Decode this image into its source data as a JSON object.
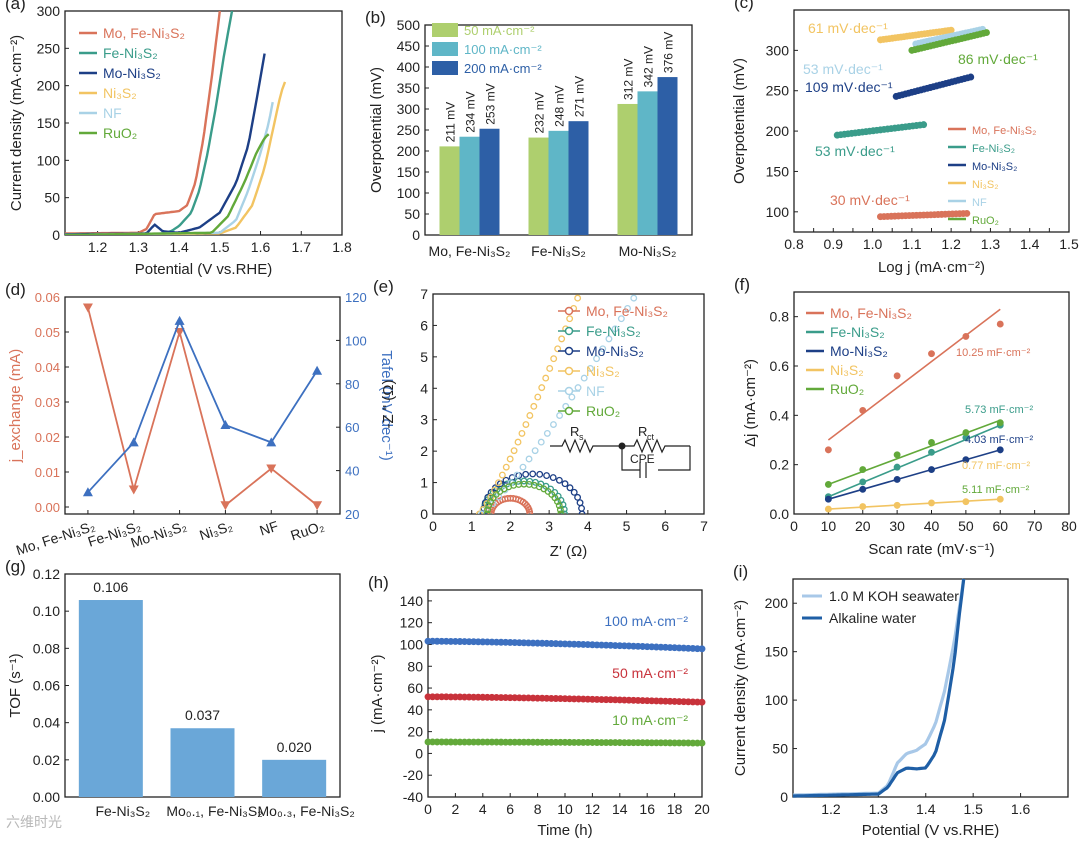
{
  "watermark": "六维时光",
  "chart_data": [
    {
      "panel": "(a)",
      "type": "line",
      "xlabel": "Potential (V vs.RHE)",
      "ylabel": "Current density (mA·cm⁻²)",
      "xlim": [
        1.12,
        1.8
      ],
      "ylim": [
        0,
        300
      ],
      "xticks": [
        1.2,
        1.3,
        1.4,
        1.5,
        1.6,
        1.7,
        1.8
      ],
      "yticks": [
        0,
        50,
        100,
        150,
        200,
        250,
        300
      ],
      "series": [
        {
          "name": "Mo, Fe-Ni₃S₂",
          "color": "#d9735a",
          "x": [
            1.12,
            1.3,
            1.32,
            1.34,
            1.37,
            1.4,
            1.42,
            1.44,
            1.46,
            1.48,
            1.5
          ],
          "y": [
            2,
            3,
            8,
            28,
            30,
            32,
            40,
            70,
            130,
            210,
            300
          ]
        },
        {
          "name": "Fe-Ni₃S₂",
          "color": "#3a9c8a",
          "x": [
            1.12,
            1.35,
            1.38,
            1.4,
            1.43,
            1.45,
            1.47,
            1.49,
            1.51,
            1.53
          ],
          "y": [
            1,
            1,
            5,
            12,
            30,
            60,
            110,
            170,
            240,
            300
          ]
        },
        {
          "name": "Mo-Ni₃S₂",
          "color": "#1d3f86",
          "x": [
            1.12,
            1.32,
            1.34,
            1.36,
            1.4,
            1.45,
            1.5,
            1.54,
            1.57,
            1.59,
            1.61
          ],
          "y": [
            1,
            2,
            14,
            5,
            3,
            10,
            30,
            70,
            120,
            180,
            243
          ]
        },
        {
          "name": "Ni₃S₂",
          "color": "#f2c462",
          "x": [
            1.12,
            1.5,
            1.54,
            1.58,
            1.61,
            1.63,
            1.65,
            1.66
          ],
          "y": [
            0,
            2,
            10,
            40,
            90,
            140,
            190,
            205
          ]
        },
        {
          "name": "NF",
          "color": "#a9d2e6",
          "x": [
            1.12,
            1.5,
            1.54,
            1.57,
            1.6,
            1.62,
            1.63
          ],
          "y": [
            0,
            3,
            20,
            60,
            110,
            150,
            178
          ]
        },
        {
          "name": "RuO₂",
          "color": "#62a93a",
          "x": [
            1.12,
            1.48,
            1.52,
            1.56,
            1.59,
            1.61,
            1.62
          ],
          "y": [
            0,
            3,
            25,
            70,
            110,
            130,
            135
          ]
        }
      ]
    },
    {
      "panel": "(b)",
      "type": "bar",
      "xlabel": "",
      "ylabel": "Overpotential (mV)",
      "ylim": [
        0,
        500
      ],
      "yticks": [
        0,
        50,
        100,
        150,
        200,
        250,
        300,
        350,
        400,
        450,
        500
      ],
      "categories": [
        "Mo, Fe-Ni₃S₂",
        "Fe-Ni₃S₂",
        "Mo-Ni₃S₂"
      ],
      "series": [
        {
          "name": "50 mA·cm⁻²",
          "color": "#aecf6e",
          "values": [
            211,
            232,
            312
          ],
          "labels": [
            "211 mV",
            "232 mV",
            "312 mV"
          ]
        },
        {
          "name": "100 mA·cm⁻²",
          "color": "#5fb6c7",
          "values": [
            234,
            248,
            342
          ],
          "labels": [
            "234 mV",
            "248 mV",
            "342 mV"
          ]
        },
        {
          "name": "200 mA·cm⁻²",
          "color": "#2d5fa6",
          "values": [
            253,
            271,
            376
          ],
          "labels": [
            "253 mV",
            "271 mV",
            "376 mV"
          ]
        }
      ]
    },
    {
      "panel": "(c)",
      "type": "scatter",
      "xlabel": "Log j (mA·cm⁻²)",
      "ylabel": "Overpotential (mV)",
      "xlim": [
        0.8,
        1.5
      ],
      "ylim": [
        75,
        350
      ],
      "xticks": [
        0.8,
        0.85,
        0.9,
        0.95,
        1.0,
        1.05,
        1.1,
        1.15,
        1.2,
        1.25,
        1.3,
        1.35,
        1.4,
        1.45,
        1.5
      ],
      "xticklabels": [
        "0.8",
        "",
        "0.9",
        "",
        "1.0",
        "",
        "1.1",
        "",
        "1.2",
        "",
        "1.3",
        "",
        "1.4",
        "",
        "1.5"
      ],
      "yticks": [
        100,
        150,
        200,
        250,
        300
      ],
      "series": [
        {
          "name": "Mo, Fe-Ni₃S₂",
          "color": "#d9735a",
          "x0": 1.02,
          "x1": 1.24,
          "y0": 94,
          "y1": 98,
          "tafel": "30 mV·dec⁻¹"
        },
        {
          "name": "Fe-Ni₃S₂",
          "color": "#3a9c8a",
          "x0": 0.91,
          "x1": 1.13,
          "y0": 195,
          "y1": 208,
          "tafel": "53 mV·dec⁻¹"
        },
        {
          "name": "Mo-Ni₃S₂",
          "color": "#1d3f86",
          "x0": 1.06,
          "x1": 1.25,
          "y0": 243,
          "y1": 267,
          "tafel": "109 mV·dec⁻¹"
        },
        {
          "name": "Ni₃S₂",
          "color": "#f2c462",
          "x0": 1.02,
          "x1": 1.2,
          "y0": 313,
          "y1": 325,
          "tafel": "61 mV·dec⁻¹"
        },
        {
          "name": "NF",
          "color": "#a9d2e6",
          "x0": 1.11,
          "x1": 1.28,
          "y0": 308,
          "y1": 326,
          "tafel": "53 mV·dec⁻¹"
        },
        {
          "name": "RuO₂",
          "color": "#62a93a",
          "x0": 1.1,
          "x1": 1.29,
          "y0": 300,
          "y1": 322,
          "tafel": "86 mV·dec⁻¹"
        }
      ]
    },
    {
      "panel": "(d)",
      "type": "line",
      "xlabel": "",
      "ylabel_left": "j_exchange (mA)",
      "ylabel_right": "Tafel (mV·dec⁻¹)",
      "categories": [
        "Mo, Fe-Ni₃S₂",
        "Fe-Ni₃S₂",
        "Mo-Ni₃S₂",
        "Ni₃S₂",
        "NF",
        "RuO₂"
      ],
      "ylim_left": [
        -0.002,
        0.06
      ],
      "ylim_right": [
        20,
        120
      ],
      "yticks_left": [
        0.0,
        0.01,
        0.02,
        0.03,
        0.04,
        0.05,
        0.06
      ],
      "yticks_right": [
        20,
        40,
        60,
        80,
        100,
        120
      ],
      "series": [
        {
          "name": "j_exchange",
          "axis": "left",
          "color": "#d9735a",
          "values": [
            0.057,
            0.005,
            0.05,
            0.0005,
            0.011,
            0.0005
          ]
        },
        {
          "name": "Tafel",
          "axis": "right",
          "color": "#3d70c0",
          "values": [
            30,
            53,
            109,
            61,
            53,
            86
          ]
        }
      ]
    },
    {
      "panel": "(e)",
      "type": "scatter",
      "xlabel": "Z' (Ω)",
      "ylabel": "-Z \" (Ω)",
      "xlim": [
        0,
        7
      ],
      "ylim": [
        0,
        7
      ],
      "xticks": [
        0,
        1,
        2,
        3,
        4,
        5,
        6,
        7
      ],
      "yticks": [
        0,
        1,
        2,
        3,
        4,
        5,
        6,
        7
      ],
      "circuit_labels": [
        "R",
        "s",
        "R",
        "ct",
        "CPE"
      ],
      "series": [
        {
          "name": "Mo, Fe-Ni₃S₂",
          "color": "#d9735a",
          "shape": "arc",
          "r0": 1.5,
          "r1": 2.5
        },
        {
          "name": "Fe-Ni₃S₂",
          "color": "#3a9c8a",
          "shape": "arc",
          "r0": 1.3,
          "r1": 3.4
        },
        {
          "name": "Mo-Ni₃S₂",
          "color": "#1d3f86",
          "shape": "arc",
          "r0": 1.3,
          "r1": 3.85
        },
        {
          "name": "Ni₃S₂",
          "color": "#f2c462",
          "shape": "rise",
          "r0": 1.2,
          "kx": 0.58
        },
        {
          "name": "NF",
          "color": "#a9d2e6",
          "shape": "rise",
          "r0": 1.25,
          "kx": 0.9
        },
        {
          "name": "RuO₂",
          "color": "#62a93a",
          "shape": "arc",
          "r0": 1.4,
          "r1": 3.3
        }
      ]
    },
    {
      "panel": "(f)",
      "type": "scatter",
      "xlabel": "Scan rate (mV·s⁻¹)",
      "ylabel": "Δj (mA·cm⁻²)",
      "xlim": [
        0,
        80
      ],
      "ylim": [
        0,
        0.9
      ],
      "xticks": [
        0,
        10,
        20,
        30,
        40,
        50,
        60,
        70,
        80
      ],
      "yticks": [
        0.0,
        0.2,
        0.4,
        0.6,
        0.8
      ],
      "x": [
        10,
        20,
        30,
        40,
        50,
        60
      ],
      "series": [
        {
          "name": "Mo, Fe-Ni₃S₂",
          "color": "#d9735a",
          "values": [
            0.26,
            0.42,
            0.56,
            0.65,
            0.72,
            0.77
          ],
          "fit": [
            0.3,
            0.83
          ],
          "cdl": "10.25 mF·cm⁻²"
        },
        {
          "name": "Fe-Ni₃S₂",
          "color": "#3a9c8a",
          "values": [
            0.07,
            0.13,
            0.19,
            0.25,
            0.31,
            0.36
          ],
          "fit": [
            0.07,
            0.36
          ],
          "cdl": "5.73 mF·cm⁻²"
        },
        {
          "name": "Mo-Ni₃S₂",
          "color": "#1d3f86",
          "values": [
            0.06,
            0.1,
            0.14,
            0.18,
            0.22,
            0.26
          ],
          "fit": [
            0.06,
            0.26
          ],
          "cdl": "4.03 mF·cm⁻²"
        },
        {
          "name": "Ni₃S₂",
          "color": "#f2c462",
          "values": [
            0.02,
            0.03,
            0.035,
            0.045,
            0.05,
            0.06
          ],
          "fit": [
            0.02,
            0.06
          ],
          "cdl": "0.77 mF·cm⁻²"
        },
        {
          "name": "RuO₂",
          "color": "#62a93a",
          "values": [
            0.12,
            0.18,
            0.24,
            0.29,
            0.33,
            0.37
          ],
          "fit": [
            0.12,
            0.38
          ],
          "cdl": "5.11 mF·cm⁻²"
        }
      ]
    },
    {
      "panel": "(g)",
      "type": "bar",
      "xlabel": "",
      "ylabel": "TOF (s⁻¹)",
      "ylim": [
        0,
        0.12
      ],
      "yticks": [
        0.0,
        0.02,
        0.04,
        0.06,
        0.08,
        0.1,
        0.12
      ],
      "categories": [
        "Fe-Ni₃S₂",
        "Mo₀.₁, Fe-Ni₃S₂",
        "Mo₀.₃, Fe-Ni₃S₂"
      ],
      "values": [
        0.106,
        0.037,
        0.02
      ],
      "labels": [
        "0.106",
        "0.037",
        "0.020"
      ],
      "color": "#6aa7d8"
    },
    {
      "panel": "(h)",
      "type": "scatter",
      "xlabel": "Time (h)",
      "ylabel": "j (mA·cm⁻²)",
      "xlim": [
        0,
        20
      ],
      "ylim": [
        -40,
        150
      ],
      "xticks": [
        0,
        2,
        4,
        6,
        8,
        10,
        12,
        14,
        16,
        18,
        20
      ],
      "yticks": [
        -40,
        -20,
        0,
        20,
        40,
        60,
        80,
        100,
        120,
        140
      ],
      "series": [
        {
          "name": "100 mA·cm⁻²",
          "color": "#3d70c0",
          "start": 103,
          "end": 96
        },
        {
          "name": "50 mA·cm⁻²",
          "color": "#c8323b",
          "start": 52,
          "end": 47
        },
        {
          "name": "10 mA·cm⁻²",
          "color": "#62a93a",
          "start": 10.5,
          "end": 9.5
        }
      ]
    },
    {
      "panel": "(i)",
      "type": "line",
      "xlabel": "Potential (V vs.RHE)",
      "ylabel": "Current density (mA·cm⁻²)",
      "xlim": [
        1.12,
        1.7
      ],
      "ylim": [
        0,
        225
      ],
      "xticks": [
        1.2,
        1.3,
        1.4,
        1.5,
        1.6
      ],
      "yticks": [
        0,
        50,
        100,
        150,
        200
      ],
      "series": [
        {
          "name": "1.0 M KOH seawater",
          "color": "#a8c8e8",
          "x": [
            1.12,
            1.3,
            1.32,
            1.34,
            1.36,
            1.38,
            1.4,
            1.42,
            1.44,
            1.46,
            1.48
          ],
          "y": [
            2,
            4,
            12,
            35,
            45,
            48,
            55,
            75,
            110,
            160,
            225
          ]
        },
        {
          "name": "Alkaline water",
          "color": "#1f5fa6",
          "x": [
            1.12,
            1.3,
            1.32,
            1.34,
            1.36,
            1.38,
            1.4,
            1.42,
            1.44,
            1.46,
            1.47,
            1.48
          ],
          "y": [
            1,
            3,
            10,
            25,
            30,
            29,
            30,
            45,
            80,
            140,
            185,
            225
          ]
        }
      ]
    }
  ]
}
